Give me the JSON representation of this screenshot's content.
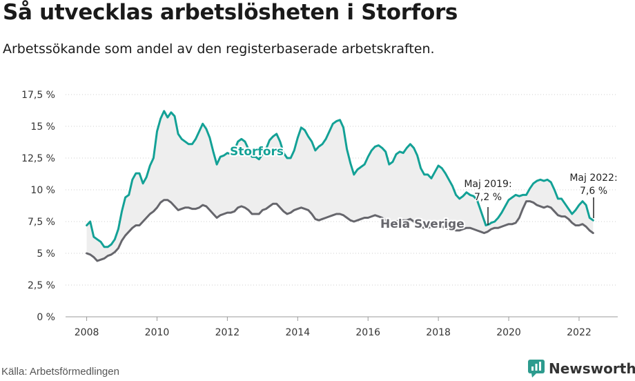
{
  "header": {
    "title": "Så utvecklas arbetslösheten i Storfors",
    "subtitle": "Arbetssökande som andel av den registerbaserade arbetskraften."
  },
  "footer": {
    "source": "Källa: Arbetsförmedlingen",
    "brand": "Newsworthy"
  },
  "chart_data": {
    "type": "line",
    "title": "Så utvecklas arbetslösheten i Storfors",
    "subtitle": "Arbetssökande som andel av den registerbaserade arbetskraften.",
    "xlim": [
      2007.4,
      2023.1
    ],
    "ylim": [
      0,
      17.5
    ],
    "x_ticks": [
      2008,
      2010,
      2012,
      2014,
      2016,
      2018,
      2020,
      2022
    ],
    "x_tick_labels": [
      "2008",
      "2010",
      "2012",
      "2014",
      "2016",
      "2018",
      "2020",
      "2022"
    ],
    "y_ticks": [
      0,
      2.5,
      5,
      7.5,
      10,
      12.5,
      15,
      17.5
    ],
    "y_tick_labels": [
      "0 %",
      "2,5 %",
      "5 %",
      "7,5 %",
      "10 %",
      "12,5 %",
      "15 %",
      "17,5 %"
    ],
    "grid": "horizontal",
    "area_between": true,
    "colors": {
      "storfors": "#13a196",
      "sverige": "#66666c",
      "band": "#eeeeee",
      "axis": "#999999"
    },
    "series": [
      {
        "name": "Storfors",
        "label": "Storfors",
        "points": [
          [
            2008.0,
            7.2
          ],
          [
            2008.1,
            7.5
          ],
          [
            2008.2,
            6.3
          ],
          [
            2008.3,
            6.1
          ],
          [
            2008.4,
            5.9
          ],
          [
            2008.5,
            5.5
          ],
          [
            2008.6,
            5.5
          ],
          [
            2008.7,
            5.7
          ],
          [
            2008.8,
            6.1
          ],
          [
            2008.9,
            6.9
          ],
          [
            2009.0,
            8.3
          ],
          [
            2009.1,
            9.4
          ],
          [
            2009.2,
            9.6
          ],
          [
            2009.3,
            10.8
          ],
          [
            2009.4,
            11.3
          ],
          [
            2009.5,
            11.3
          ],
          [
            2009.6,
            10.5
          ],
          [
            2009.7,
            11.0
          ],
          [
            2009.8,
            11.9
          ],
          [
            2009.9,
            12.5
          ],
          [
            2010.0,
            14.6
          ],
          [
            2010.1,
            15.6
          ],
          [
            2010.2,
            16.2
          ],
          [
            2010.3,
            15.7
          ],
          [
            2010.4,
            16.1
          ],
          [
            2010.5,
            15.8
          ],
          [
            2010.6,
            14.4
          ],
          [
            2010.7,
            14.0
          ],
          [
            2010.8,
            13.8
          ],
          [
            2010.9,
            13.6
          ],
          [
            2011.0,
            13.6
          ],
          [
            2011.1,
            14.0
          ],
          [
            2011.2,
            14.6
          ],
          [
            2011.3,
            15.2
          ],
          [
            2011.4,
            14.8
          ],
          [
            2011.5,
            14.1
          ],
          [
            2011.6,
            13.0
          ],
          [
            2011.7,
            12.0
          ],
          [
            2011.8,
            12.6
          ],
          [
            2011.9,
            12.7
          ],
          [
            2012.0,
            12.9
          ],
          [
            2012.1,
            12.8
          ],
          [
            2012.2,
            13.1
          ],
          [
            2012.3,
            13.8
          ],
          [
            2012.4,
            14.0
          ],
          [
            2012.5,
            13.8
          ],
          [
            2012.6,
            13.2
          ],
          [
            2012.7,
            12.6
          ],
          [
            2012.8,
            12.6
          ],
          [
            2012.9,
            12.4
          ],
          [
            2013.0,
            12.8
          ],
          [
            2013.1,
            13.2
          ],
          [
            2013.2,
            13.9
          ],
          [
            2013.3,
            14.2
          ],
          [
            2013.4,
            14.4
          ],
          [
            2013.5,
            13.8
          ],
          [
            2013.6,
            12.9
          ],
          [
            2013.7,
            12.5
          ],
          [
            2013.8,
            12.5
          ],
          [
            2013.9,
            13.1
          ],
          [
            2014.0,
            14.1
          ],
          [
            2014.1,
            14.9
          ],
          [
            2014.2,
            14.7
          ],
          [
            2014.3,
            14.2
          ],
          [
            2014.4,
            13.8
          ],
          [
            2014.5,
            13.1
          ],
          [
            2014.6,
            13.4
          ],
          [
            2014.7,
            13.6
          ],
          [
            2014.8,
            14.0
          ],
          [
            2014.9,
            14.6
          ],
          [
            2015.0,
            15.2
          ],
          [
            2015.1,
            15.4
          ],
          [
            2015.2,
            15.5
          ],
          [
            2015.3,
            14.9
          ],
          [
            2015.4,
            13.2
          ],
          [
            2015.5,
            12.1
          ],
          [
            2015.6,
            11.2
          ],
          [
            2015.7,
            11.6
          ],
          [
            2015.8,
            11.8
          ],
          [
            2015.9,
            12.0
          ],
          [
            2016.0,
            12.6
          ],
          [
            2016.1,
            13.1
          ],
          [
            2016.2,
            13.4
          ],
          [
            2016.3,
            13.5
          ],
          [
            2016.4,
            13.3
          ],
          [
            2016.5,
            13.0
          ],
          [
            2016.6,
            12.0
          ],
          [
            2016.7,
            12.2
          ],
          [
            2016.8,
            12.8
          ],
          [
            2016.9,
            13.0
          ],
          [
            2017.0,
            12.9
          ],
          [
            2017.1,
            13.3
          ],
          [
            2017.2,
            13.6
          ],
          [
            2017.3,
            13.3
          ],
          [
            2017.4,
            12.7
          ],
          [
            2017.5,
            11.7
          ],
          [
            2017.6,
            11.2
          ],
          [
            2017.7,
            11.2
          ],
          [
            2017.8,
            10.9
          ],
          [
            2017.9,
            11.4
          ],
          [
            2018.0,
            11.9
          ],
          [
            2018.1,
            11.7
          ],
          [
            2018.2,
            11.3
          ],
          [
            2018.3,
            10.8
          ],
          [
            2018.4,
            10.3
          ],
          [
            2018.5,
            9.6
          ],
          [
            2018.6,
            9.3
          ],
          [
            2018.7,
            9.5
          ],
          [
            2018.8,
            9.8
          ],
          [
            2018.9,
            9.6
          ],
          [
            2019.0,
            9.5
          ],
          [
            2019.1,
            9.2
          ],
          [
            2019.2,
            8.4
          ],
          [
            2019.3,
            7.6
          ],
          [
            2019.35,
            7.2
          ],
          [
            2019.45,
            7.3
          ],
          [
            2019.5,
            7.4
          ],
          [
            2019.6,
            7.5
          ],
          [
            2019.7,
            7.8
          ],
          [
            2019.8,
            8.2
          ],
          [
            2019.9,
            8.7
          ],
          [
            2020.0,
            9.2
          ],
          [
            2020.1,
            9.4
          ],
          [
            2020.2,
            9.6
          ],
          [
            2020.3,
            9.5
          ],
          [
            2020.4,
            9.6
          ],
          [
            2020.5,
            9.6
          ],
          [
            2020.6,
            10.1
          ],
          [
            2020.7,
            10.5
          ],
          [
            2020.8,
            10.7
          ],
          [
            2020.9,
            10.8
          ],
          [
            2021.0,
            10.7
          ],
          [
            2021.1,
            10.8
          ],
          [
            2021.2,
            10.6
          ],
          [
            2021.3,
            10.0
          ],
          [
            2021.4,
            9.3
          ],
          [
            2021.5,
            9.3
          ],
          [
            2021.6,
            8.9
          ],
          [
            2021.7,
            8.5
          ],
          [
            2021.8,
            8.1
          ],
          [
            2021.9,
            8.4
          ],
          [
            2022.0,
            8.8
          ],
          [
            2022.1,
            9.1
          ],
          [
            2022.2,
            8.8
          ],
          [
            2022.3,
            7.8
          ],
          [
            2022.4,
            7.6
          ]
        ]
      },
      {
        "name": "Hela Sverige",
        "label": "Hela Sverige",
        "points": [
          [
            2008.0,
            5.0
          ],
          [
            2008.1,
            4.9
          ],
          [
            2008.2,
            4.7
          ],
          [
            2008.3,
            4.4
          ],
          [
            2008.4,
            4.5
          ],
          [
            2008.5,
            4.6
          ],
          [
            2008.6,
            4.8
          ],
          [
            2008.7,
            4.9
          ],
          [
            2008.8,
            5.1
          ],
          [
            2008.9,
            5.4
          ],
          [
            2009.0,
            6.0
          ],
          [
            2009.1,
            6.4
          ],
          [
            2009.2,
            6.7
          ],
          [
            2009.3,
            7.0
          ],
          [
            2009.4,
            7.2
          ],
          [
            2009.5,
            7.2
          ],
          [
            2009.6,
            7.5
          ],
          [
            2009.7,
            7.8
          ],
          [
            2009.8,
            8.1
          ],
          [
            2009.9,
            8.3
          ],
          [
            2010.0,
            8.6
          ],
          [
            2010.1,
            9.0
          ],
          [
            2010.2,
            9.2
          ],
          [
            2010.3,
            9.2
          ],
          [
            2010.4,
            9.0
          ],
          [
            2010.5,
            8.7
          ],
          [
            2010.6,
            8.4
          ],
          [
            2010.7,
            8.5
          ],
          [
            2010.8,
            8.6
          ],
          [
            2010.9,
            8.6
          ],
          [
            2011.0,
            8.5
          ],
          [
            2011.1,
            8.5
          ],
          [
            2011.2,
            8.6
          ],
          [
            2011.3,
            8.8
          ],
          [
            2011.4,
            8.7
          ],
          [
            2011.5,
            8.4
          ],
          [
            2011.6,
            8.1
          ],
          [
            2011.7,
            7.8
          ],
          [
            2011.8,
            8.0
          ],
          [
            2011.9,
            8.1
          ],
          [
            2012.0,
            8.2
          ],
          [
            2012.1,
            8.2
          ],
          [
            2012.2,
            8.3
          ],
          [
            2012.3,
            8.6
          ],
          [
            2012.4,
            8.7
          ],
          [
            2012.5,
            8.6
          ],
          [
            2012.6,
            8.4
          ],
          [
            2012.7,
            8.1
          ],
          [
            2012.8,
            8.1
          ],
          [
            2012.9,
            8.1
          ],
          [
            2013.0,
            8.4
          ],
          [
            2013.1,
            8.5
          ],
          [
            2013.2,
            8.7
          ],
          [
            2013.3,
            8.9
          ],
          [
            2013.4,
            8.9
          ],
          [
            2013.5,
            8.6
          ],
          [
            2013.6,
            8.3
          ],
          [
            2013.7,
            8.1
          ],
          [
            2013.8,
            8.2
          ],
          [
            2013.9,
            8.4
          ],
          [
            2014.0,
            8.5
          ],
          [
            2014.1,
            8.6
          ],
          [
            2014.2,
            8.5
          ],
          [
            2014.3,
            8.4
          ],
          [
            2014.4,
            8.1
          ],
          [
            2014.5,
            7.7
          ],
          [
            2014.6,
            7.6
          ],
          [
            2014.7,
            7.7
          ],
          [
            2014.8,
            7.8
          ],
          [
            2014.9,
            7.9
          ],
          [
            2015.0,
            8.0
          ],
          [
            2015.1,
            8.1
          ],
          [
            2015.2,
            8.1
          ],
          [
            2015.3,
            8.0
          ],
          [
            2015.4,
            7.8
          ],
          [
            2015.5,
            7.6
          ],
          [
            2015.6,
            7.5
          ],
          [
            2015.7,
            7.6
          ],
          [
            2015.8,
            7.7
          ],
          [
            2015.9,
            7.8
          ],
          [
            2016.0,
            7.8
          ],
          [
            2016.1,
            7.9
          ],
          [
            2016.2,
            8.0
          ],
          [
            2016.3,
            7.9
          ],
          [
            2016.4,
            7.8
          ],
          [
            2016.5,
            7.6
          ],
          [
            2016.6,
            7.4
          ],
          [
            2016.7,
            7.4
          ],
          [
            2016.8,
            7.5
          ],
          [
            2016.9,
            7.6
          ],
          [
            2017.0,
            7.6
          ],
          [
            2017.1,
            7.6
          ],
          [
            2017.2,
            7.7
          ],
          [
            2017.3,
            7.5
          ],
          [
            2017.4,
            7.3
          ],
          [
            2017.5,
            7.1
          ],
          [
            2017.6,
            7.0
          ],
          [
            2017.7,
            7.0
          ],
          [
            2017.8,
            7.1
          ],
          [
            2017.9,
            7.1
          ],
          [
            2018.0,
            7.1
          ],
          [
            2018.1,
            7.1
          ],
          [
            2018.2,
            7.0
          ],
          [
            2018.3,
            6.9
          ],
          [
            2018.4,
            6.9
          ],
          [
            2018.5,
            6.8
          ],
          [
            2018.6,
            6.8
          ],
          [
            2018.7,
            6.9
          ],
          [
            2018.8,
            7.0
          ],
          [
            2018.9,
            7.0
          ],
          [
            2019.0,
            6.9
          ],
          [
            2019.1,
            6.8
          ],
          [
            2019.2,
            6.7
          ],
          [
            2019.3,
            6.6
          ],
          [
            2019.4,
            6.7
          ],
          [
            2019.5,
            6.9
          ],
          [
            2019.6,
            7.0
          ],
          [
            2019.7,
            7.0
          ],
          [
            2019.8,
            7.1
          ],
          [
            2019.9,
            7.2
          ],
          [
            2020.0,
            7.3
          ],
          [
            2020.1,
            7.3
          ],
          [
            2020.2,
            7.4
          ],
          [
            2020.3,
            7.8
          ],
          [
            2020.4,
            8.5
          ],
          [
            2020.5,
            9.1
          ],
          [
            2020.6,
            9.1
          ],
          [
            2020.7,
            9.0
          ],
          [
            2020.8,
            8.8
          ],
          [
            2020.9,
            8.7
          ],
          [
            2021.0,
            8.6
          ],
          [
            2021.1,
            8.7
          ],
          [
            2021.2,
            8.6
          ],
          [
            2021.3,
            8.3
          ],
          [
            2021.4,
            8.0
          ],
          [
            2021.5,
            7.9
          ],
          [
            2021.6,
            7.9
          ],
          [
            2021.7,
            7.7
          ],
          [
            2021.8,
            7.4
          ],
          [
            2021.9,
            7.2
          ],
          [
            2022.0,
            7.2
          ],
          [
            2022.1,
            7.3
          ],
          [
            2022.2,
            7.1
          ],
          [
            2022.3,
            6.8
          ],
          [
            2022.4,
            6.6
          ]
        ]
      }
    ],
    "annotations": [
      {
        "text_line1": "Maj 2019:",
        "text_line2": "7,2 %",
        "x": 2019.35,
        "y": 7.2
      },
      {
        "text_line1": "Maj 2022:",
        "text_line2": "7,6 %",
        "x": 2022.4,
        "y": 7.6
      }
    ]
  }
}
